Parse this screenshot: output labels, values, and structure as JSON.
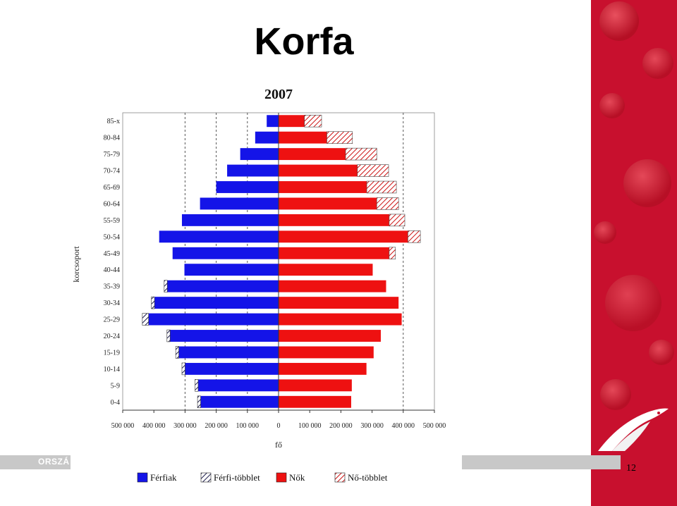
{
  "slide": {
    "title": "Korfa",
    "footer_text": "ORSZÁ",
    "page_number": "12"
  },
  "colors": {
    "male": "#1414e8",
    "female": "#ee1111",
    "grid": "#555555",
    "panel": "#c8102e"
  },
  "chart_data": {
    "type": "bar",
    "orientation": "population-pyramid",
    "title": "2007",
    "xlabel": "fő",
    "ylabel": "korcsoport",
    "xlim": [
      -500000,
      500000
    ],
    "x_ticks": [
      -500000,
      -400000,
      -300000,
      -200000,
      -100000,
      0,
      100000,
      200000,
      300000,
      400000,
      500000
    ],
    "x_tick_labels": [
      "500 000",
      "400 000",
      "300 000",
      "200 000",
      "100 000",
      "0",
      "100 000",
      "200 000",
      "300 000",
      "400 000",
      "500 000"
    ],
    "gridlines_at": [
      -300000,
      -200000,
      -100000,
      400000
    ],
    "categories": [
      "85-x",
      "80-84",
      "75-79",
      "70-74",
      "65-69",
      "60-64",
      "55-59",
      "50-54",
      "45-49",
      "40-44",
      "35-39",
      "30-34",
      "25-29",
      "20-24",
      "15-19",
      "10-14",
      "5-9",
      "0-4"
    ],
    "series": [
      {
        "name": "Férfiak",
        "values": [
          -38000,
          -75000,
          -123000,
          -165000,
          -200000,
          -252000,
          -310000,
          -383000,
          -340000,
          -302000,
          -357000,
          -398000,
          -417000,
          -348000,
          -320000,
          -300000,
          -258000,
          -250000
        ]
      },
      {
        "name": "Férfi-többlet",
        "values": [
          0,
          0,
          0,
          0,
          0,
          0,
          0,
          0,
          0,
          0,
          -10000,
          -10000,
          -20000,
          -10000,
          -10000,
          -10000,
          -10000,
          -10000
        ]
      },
      {
        "name": "Nők",
        "values": [
          83000,
          155000,
          215000,
          253000,
          283000,
          315000,
          355000,
          415000,
          355000,
          302000,
          345000,
          385000,
          395000,
          328000,
          305000,
          282000,
          235000,
          233000
        ]
      },
      {
        "name": "Nő-többlet",
        "values": [
          55000,
          82000,
          100000,
          100000,
          95000,
          70000,
          50000,
          40000,
          20000,
          0,
          0,
          0,
          0,
          0,
          0,
          0,
          0,
          0
        ]
      }
    ],
    "legend": {
      "position": "bottom",
      "entries": [
        "Férfiak",
        "Férfi-többlet",
        "Nők",
        "Nő-többlet"
      ]
    }
  }
}
